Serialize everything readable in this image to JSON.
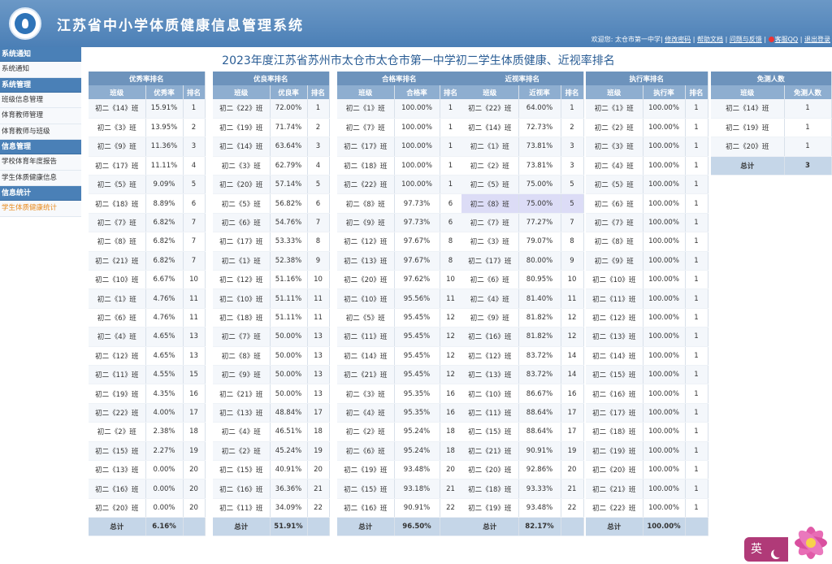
{
  "header": {
    "title": "江苏省中小学体质健康信息管理系统",
    "welcome": "欢迎您: 太仓市第一中学|",
    "links": [
      "修改密码",
      "帮助文档",
      "问题与反馈",
      "客服QQ",
      "退出登录"
    ],
    "sep": "|"
  },
  "sidebar": [
    {
      "label": "系统通知",
      "items": [
        {
          "label": "系统通知"
        }
      ]
    },
    {
      "label": "系统管理",
      "items": [
        {
          "label": "班级信息管理"
        },
        {
          "label": "体育教师管理"
        },
        {
          "label": "体育教师与班级"
        }
      ]
    },
    {
      "label": "信息管理",
      "items": [
        {
          "label": "学校体育年度报告"
        },
        {
          "label": "学生体质健康信息"
        }
      ]
    },
    {
      "label": "信息统计",
      "items": [
        {
          "label": "学生体质健康统计",
          "active": true
        }
      ]
    }
  ],
  "page_title": "2023年度江苏省苏州市太仓市太仓市第一中学初二学生体质健康、近视率排名",
  "tables": [
    {
      "title": "优秀率排名",
      "cols": [
        "班级",
        "优秀率",
        "排名"
      ],
      "rows": [
        [
          "初二《14》班",
          "15.91%",
          "1"
        ],
        [
          "初二《3》班",
          "13.95%",
          "2"
        ],
        [
          "初二《9》班",
          "11.36%",
          "3"
        ],
        [
          "初二《17》班",
          "11.11%",
          "4"
        ],
        [
          "初二《5》班",
          "9.09%",
          "5"
        ],
        [
          "初二《18》班",
          "8.89%",
          "6"
        ],
        [
          "初二《7》班",
          "6.82%",
          "7"
        ],
        [
          "初二《8》班",
          "6.82%",
          "7"
        ],
        [
          "初二《21》班",
          "6.82%",
          "7"
        ],
        [
          "初二《10》班",
          "6.67%",
          "10"
        ],
        [
          "初二《1》班",
          "4.76%",
          "11"
        ],
        [
          "初二《6》班",
          "4.76%",
          "11"
        ],
        [
          "初二《4》班",
          "4.65%",
          "13"
        ],
        [
          "初二《12》班",
          "4.65%",
          "13"
        ],
        [
          "初二《11》班",
          "4.55%",
          "15"
        ],
        [
          "初二《19》班",
          "4.35%",
          "16"
        ],
        [
          "初二《22》班",
          "4.00%",
          "17"
        ],
        [
          "初二《2》班",
          "2.38%",
          "18"
        ],
        [
          "初二《15》班",
          "2.27%",
          "19"
        ],
        [
          "初二《13》班",
          "0.00%",
          "20"
        ],
        [
          "初二《16》班",
          "0.00%",
          "20"
        ],
        [
          "初二《20》班",
          "0.00%",
          "20"
        ]
      ],
      "total": [
        "总计",
        "6.16%",
        ""
      ]
    },
    {
      "title": "优良率排名",
      "cols": [
        "班级",
        "优良率",
        "排名"
      ],
      "rows": [
        [
          "初二《22》班",
          "72.00%",
          "1"
        ],
        [
          "初二《19》班",
          "71.74%",
          "2"
        ],
        [
          "初二《14》班",
          "63.64%",
          "3"
        ],
        [
          "初二《3》班",
          "62.79%",
          "4"
        ],
        [
          "初二《20》班",
          "57.14%",
          "5"
        ],
        [
          "初二《5》班",
          "56.82%",
          "6"
        ],
        [
          "初二《6》班",
          "54.76%",
          "7"
        ],
        [
          "初二《17》班",
          "53.33%",
          "8"
        ],
        [
          "初二《1》班",
          "52.38%",
          "9"
        ],
        [
          "初二《12》班",
          "51.16%",
          "10"
        ],
        [
          "初二《10》班",
          "51.11%",
          "11"
        ],
        [
          "初二《18》班",
          "51.11%",
          "11"
        ],
        [
          "初二《7》班",
          "50.00%",
          "13"
        ],
        [
          "初二《8》班",
          "50.00%",
          "13"
        ],
        [
          "初二《9》班",
          "50.00%",
          "13"
        ],
        [
          "初二《21》班",
          "50.00%",
          "13"
        ],
        [
          "初二《13》班",
          "48.84%",
          "17"
        ],
        [
          "初二《4》班",
          "46.51%",
          "18"
        ],
        [
          "初二《2》班",
          "45.24%",
          "19"
        ],
        [
          "初二《15》班",
          "40.91%",
          "20"
        ],
        [
          "初二《16》班",
          "36.36%",
          "21"
        ],
        [
          "初二《11》班",
          "34.09%",
          "22"
        ]
      ],
      "total": [
        "总计",
        "51.91%",
        ""
      ]
    },
    {
      "title": "合格率排名",
      "cols": [
        "班级",
        "合格率",
        "排名"
      ],
      "rows": [
        [
          "初二《1》班",
          "100.00%",
          "1"
        ],
        [
          "初二《7》班",
          "100.00%",
          "1"
        ],
        [
          "初二《17》班",
          "100.00%",
          "1"
        ],
        [
          "初二《18》班",
          "100.00%",
          "1"
        ],
        [
          "初二《22》班",
          "100.00%",
          "1"
        ],
        [
          "初二《8》班",
          "97.73%",
          "6"
        ],
        [
          "初二《9》班",
          "97.73%",
          "6"
        ],
        [
          "初二《12》班",
          "97.67%",
          "8"
        ],
        [
          "初二《13》班",
          "97.67%",
          "8"
        ],
        [
          "初二《20》班",
          "97.62%",
          "10"
        ],
        [
          "初二《10》班",
          "95.56%",
          "11"
        ],
        [
          "初二《5》班",
          "95.45%",
          "12"
        ],
        [
          "初二《11》班",
          "95.45%",
          "12"
        ],
        [
          "初二《14》班",
          "95.45%",
          "12"
        ],
        [
          "初二《21》班",
          "95.45%",
          "12"
        ],
        [
          "初二《3》班",
          "95.35%",
          "16"
        ],
        [
          "初二《4》班",
          "95.35%",
          "16"
        ],
        [
          "初二《2》班",
          "95.24%",
          "18"
        ],
        [
          "初二《6》班",
          "95.24%",
          "18"
        ],
        [
          "初二《19》班",
          "93.48%",
          "20"
        ],
        [
          "初二《15》班",
          "93.18%",
          "21"
        ],
        [
          "初二《16》班",
          "90.91%",
          "22"
        ]
      ],
      "total": [
        "总计",
        "96.50%",
        ""
      ]
    },
    {
      "title": "近视率排名",
      "cols": [
        "班级",
        "近视率",
        "排名"
      ],
      "highlight_row": 5,
      "rows": [
        [
          "初二《22》班",
          "64.00%",
          "1"
        ],
        [
          "初二《14》班",
          "72.73%",
          "2"
        ],
        [
          "初二《1》班",
          "73.81%",
          "3"
        ],
        [
          "初二《2》班",
          "73.81%",
          "3"
        ],
        [
          "初二《5》班",
          "75.00%",
          "5"
        ],
        [
          "初二《8》班",
          "75.00%",
          "5"
        ],
        [
          "初二《7》班",
          "77.27%",
          "7"
        ],
        [
          "初二《3》班",
          "79.07%",
          "8"
        ],
        [
          "初二《17》班",
          "80.00%",
          "9"
        ],
        [
          "初二《6》班",
          "80.95%",
          "10"
        ],
        [
          "初二《4》班",
          "81.40%",
          "11"
        ],
        [
          "初二《9》班",
          "81.82%",
          "12"
        ],
        [
          "初二《16》班",
          "81.82%",
          "12"
        ],
        [
          "初二《12》班",
          "83.72%",
          "14"
        ],
        [
          "初二《13》班",
          "83.72%",
          "14"
        ],
        [
          "初二《10》班",
          "86.67%",
          "16"
        ],
        [
          "初二《11》班",
          "88.64%",
          "17"
        ],
        [
          "初二《15》班",
          "88.64%",
          "17"
        ],
        [
          "初二《21》班",
          "90.91%",
          "19"
        ],
        [
          "初二《20》班",
          "92.86%",
          "20"
        ],
        [
          "初二《18》班",
          "93.33%",
          "21"
        ],
        [
          "初二《19》班",
          "93.48%",
          "22"
        ]
      ],
      "total": [
        "总计",
        "82.17%",
        ""
      ]
    },
    {
      "title": "执行率排名",
      "cols": [
        "班级",
        "执行率",
        "排名"
      ],
      "rows": [
        [
          "初二《1》班",
          "100.00%",
          "1"
        ],
        [
          "初二《2》班",
          "100.00%",
          "1"
        ],
        [
          "初二《3》班",
          "100.00%",
          "1"
        ],
        [
          "初二《4》班",
          "100.00%",
          "1"
        ],
        [
          "初二《5》班",
          "100.00%",
          "1"
        ],
        [
          "初二《6》班",
          "100.00%",
          "1"
        ],
        [
          "初二《7》班",
          "100.00%",
          "1"
        ],
        [
          "初二《8》班",
          "100.00%",
          "1"
        ],
        [
          "初二《9》班",
          "100.00%",
          "1"
        ],
        [
          "初二《10》班",
          "100.00%",
          "1"
        ],
        [
          "初二《11》班",
          "100.00%",
          "1"
        ],
        [
          "初二《12》班",
          "100.00%",
          "1"
        ],
        [
          "初二《13》班",
          "100.00%",
          "1"
        ],
        [
          "初二《14》班",
          "100.00%",
          "1"
        ],
        [
          "初二《15》班",
          "100.00%",
          "1"
        ],
        [
          "初二《16》班",
          "100.00%",
          "1"
        ],
        [
          "初二《17》班",
          "100.00%",
          "1"
        ],
        [
          "初二《18》班",
          "100.00%",
          "1"
        ],
        [
          "初二《19》班",
          "100.00%",
          "1"
        ],
        [
          "初二《20》班",
          "100.00%",
          "1"
        ],
        [
          "初二《21》班",
          "100.00%",
          "1"
        ],
        [
          "初二《22》班",
          "100.00%",
          "1"
        ]
      ],
      "total": [
        "总计",
        "100.00%",
        ""
      ]
    },
    {
      "title": "免测人数",
      "cols": [
        "班级",
        "免测人数"
      ],
      "rows": [
        [
          "初二《14》班",
          "1"
        ],
        [
          "初二《19》班",
          "1"
        ],
        [
          "初二《20》班",
          "1"
        ]
      ],
      "total": [
        "总计",
        "3"
      ]
    }
  ],
  "ime": {
    "label": "英"
  },
  "colors": {
    "header": "#5a8cc0",
    "sidebar_group": "#4a80b7",
    "active_link": "#e88a1d",
    "title": "#2a5d95"
  },
  "icons": [
    "logo-icon",
    "qq-icon",
    "moon-icon",
    "flower-icon"
  ]
}
